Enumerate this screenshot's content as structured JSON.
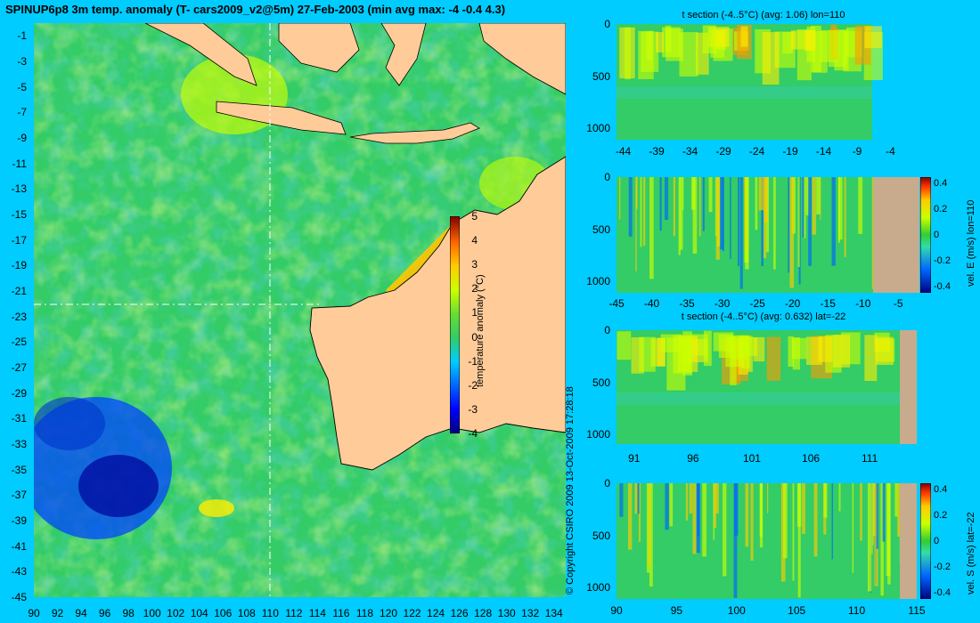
{
  "title": "SPINUP6p8 3m temp. anomaly (T- cars2009_v2@5m) 27-Feb-2003 (min avg max: -4 -0.4 4.3)",
  "copyright": "© Copyright CSIRO 2009  13-Oct-2009 17:28:18",
  "colors": {
    "background": "#00ccff",
    "land": "#ffcc99",
    "section_land": "#c8aa8c",
    "ocean_base": "#33cc66",
    "colormap": [
      "#000080",
      "#0000ff",
      "#00a0ff",
      "#00ffcc",
      "#33cc33",
      "#ccff00",
      "#ffee00",
      "#ff9900",
      "#ff3300",
      "#800000"
    ]
  },
  "chart_data": [
    {
      "type": "heatmap",
      "name": "map",
      "title": "SPINUP6p8 3m temp. anomaly (T- cars2009_v2@5m) 27-Feb-2003 (min avg max: -4 -0.4 4.3)",
      "xticks": [
        "90",
        "92",
        "94",
        "96",
        "98",
        "100",
        "102",
        "104",
        "106",
        "108",
        "110",
        "112",
        "114",
        "116",
        "118",
        "120",
        "122",
        "124",
        "126",
        "128",
        "130",
        "132",
        "134"
      ],
      "yticks": [
        "-1",
        "-3",
        "-5",
        "-7",
        "-9",
        "-11",
        "-13",
        "-15",
        "-17",
        "-19",
        "-21",
        "-23",
        "-25",
        "-27",
        "-29",
        "-31",
        "-33",
        "-35",
        "-37",
        "-39",
        "-41",
        "-43",
        "-45"
      ],
      "xlim": [
        90,
        135
      ],
      "ylim": [
        -45,
        0
      ],
      "stats": {
        "min": -4,
        "avg": -0.4,
        "max": 4.3
      },
      "section_lon": 110,
      "section_lat": -22,
      "colorbar": {
        "label": "temperature anomaly (°C)",
        "ticks": [
          "5",
          "4",
          "3",
          "2",
          "1",
          "0",
          "-1",
          "-2",
          "-3",
          "-4"
        ],
        "range": [
          -4,
          5
        ]
      }
    },
    {
      "type": "heatmap",
      "name": "t-section-lon110",
      "title": "t section (-4..5°C) (avg: 1.06) lon=110",
      "xticks": [
        "-44",
        "-39",
        "-34",
        "-29",
        "-24",
        "-19",
        "-14",
        "-9",
        "-4"
      ],
      "yticks": [
        "0",
        "500",
        "1000"
      ],
      "xlim": [
        -45,
        -1
      ],
      "ylim": [
        1050,
        0
      ],
      "avg": 1.06
    },
    {
      "type": "heatmap",
      "name": "vel-e-lon110",
      "xticks": [
        "-45",
        "-40",
        "-35",
        "-30",
        "-25",
        "-20",
        "-15",
        "-10",
        "-5"
      ],
      "yticks": [
        "0",
        "500",
        "1000"
      ],
      "xlim": [
        -45,
        -2
      ],
      "ylim": [
        1050,
        0
      ],
      "colorbar": {
        "label": "vel. E (m/s) lon=110",
        "ticks": [
          "0.4",
          "0.2",
          "0",
          "-0.2",
          "-0.4"
        ],
        "range": [
          -0.45,
          0.45
        ]
      }
    },
    {
      "type": "heatmap",
      "name": "t-section-lat-22",
      "title": "t section (-4..5°C) (avg: 0.632) lat=-22",
      "xticks": [
        "91",
        "96",
        "101",
        "106",
        "111"
      ],
      "yticks": [
        "0",
        "500",
        "1000"
      ],
      "xlim": [
        89.5,
        115
      ],
      "ylim": [
        1050,
        0
      ],
      "avg": 0.632
    },
    {
      "type": "heatmap",
      "name": "vel-s-lat-22",
      "xticks": [
        "90",
        "95",
        "100",
        "105",
        "110",
        "115"
      ],
      "yticks": [
        "0",
        "500",
        "1000"
      ],
      "xlim": [
        90,
        115
      ],
      "ylim": [
        1050,
        0
      ],
      "colorbar": {
        "label": "vel. S (m/s) lat=-22",
        "ticks": [
          "0.4",
          "0.2",
          "0",
          "-0.2",
          "-0.4"
        ],
        "range": [
          -0.45,
          0.45
        ]
      }
    }
  ]
}
